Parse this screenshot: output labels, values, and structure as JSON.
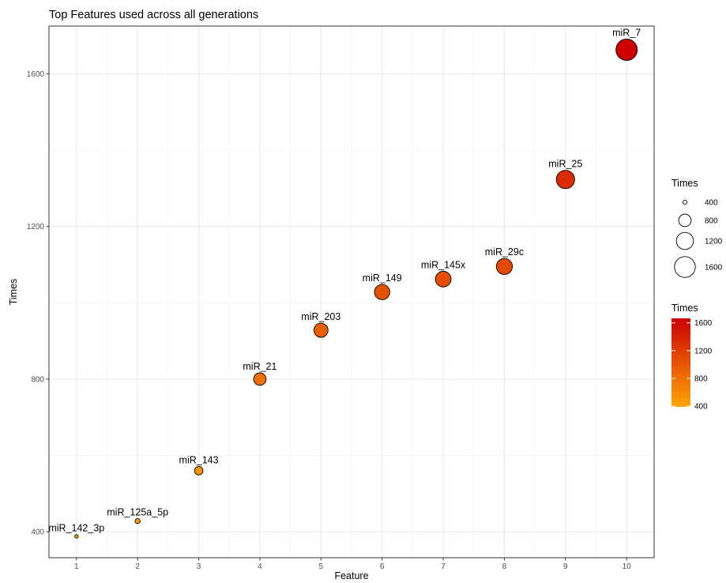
{
  "chart_data": {
    "type": "scatter",
    "title": "Top Features used across all generations",
    "xlabel": "Feature",
    "ylabel": "Times",
    "xlim": [
      0.55,
      10.45
    ],
    "ylim": [
      332,
      1725
    ],
    "x_ticks": [
      1,
      2,
      3,
      4,
      5,
      6,
      7,
      8,
      9,
      10
    ],
    "y_ticks": [
      400,
      800,
      1200,
      1600
    ],
    "grid": true,
    "points": [
      {
        "x": 1,
        "y": 388,
        "label": "miR_142_3p"
      },
      {
        "x": 2,
        "y": 428,
        "label": "miR_125a_5p"
      },
      {
        "x": 3,
        "y": 560,
        "label": "miR_143"
      },
      {
        "x": 4,
        "y": 800,
        "label": "miR_21"
      },
      {
        "x": 5,
        "y": 928,
        "label": "miR_203"
      },
      {
        "x": 6,
        "y": 1028,
        "label": "miR_149"
      },
      {
        "x": 7,
        "y": 1062,
        "label": "miR_145x"
      },
      {
        "x": 8,
        "y": 1095,
        "label": "miR_29c"
      },
      {
        "x": 9,
        "y": 1323,
        "label": "miR_25"
      },
      {
        "x": 10,
        "y": 1663,
        "label": "miR_7"
      }
    ],
    "size_legend": {
      "title": "Times",
      "values": [
        400,
        800,
        1200,
        1600
      ],
      "labels": [
        "400",
        "800",
        "1200",
        "1600"
      ]
    },
    "color_legend": {
      "title": "Times",
      "labels": [
        "400",
        "800",
        "1200",
        "1600"
      ],
      "values": [
        400,
        800,
        1200,
        1600
      ],
      "low_color": "#FFA500",
      "high_color": "#CC0000"
    },
    "colors": {
      "panel_border": "#333333",
      "grid_major": "#EBEBEB",
      "grid_minor": "#F4F4F4",
      "point_stroke": "#000000"
    },
    "legend_position": "right"
  }
}
